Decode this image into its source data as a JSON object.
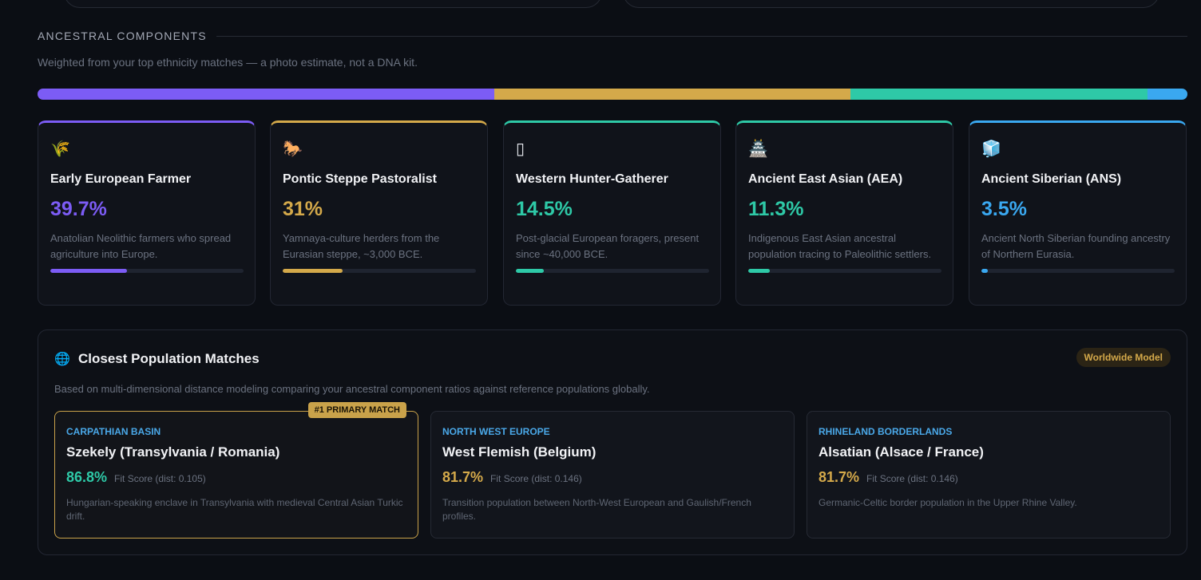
{
  "section": {
    "title": "ANCESTRAL COMPONENTS",
    "subtitle": "Weighted from your top ethnicity matches — a photo estimate, not a DNA kit."
  },
  "components": [
    {
      "icon": "🌾",
      "icon_name": "wheat-icon",
      "name": "Early European Farmer",
      "pct": "39.7%",
      "value": 39.7,
      "desc": "Anatolian Neolithic farmers who spread agriculture into Europe.",
      "color": "#7c5cf5"
    },
    {
      "icon": "🐎",
      "icon_name": "horse-icon",
      "name": "Pontic Steppe Pastoralist",
      "pct": "31%",
      "value": 31,
      "desc": "Yamnaya-culture herders from the Eurasian steppe, ~3,000 BCE.",
      "color": "#d4a94a"
    },
    {
      "icon": "▯",
      "icon_name": "missing-glyph-icon",
      "name": "Western Hunter-Gatherer",
      "pct": "14.5%",
      "value": 14.5,
      "desc": "Post-glacial European foragers, present since ~40,000 BCE.",
      "color": "#2ec9a7"
    },
    {
      "icon": "🏯",
      "icon_name": "castle-icon",
      "name": "Ancient East Asian (AEA)",
      "pct": "11.3%",
      "value": 11.3,
      "desc": "Indigenous East Asian ancestral population tracing to Paleolithic settlers.",
      "color": "#2ec9a7"
    },
    {
      "icon": "🧊",
      "icon_name": "ice-cube-icon",
      "name": "Ancient Siberian (ANS)",
      "pct": "3.5%",
      "value": 3.5,
      "desc": "Ancient North Siberian founding ancestry of Northern Eurasia.",
      "color": "#3aa8f0"
    }
  ],
  "population": {
    "globe_icon": "🌐",
    "title": "Closest Population Matches",
    "badge": "Worldwide Model",
    "subtitle": "Based on multi-dimensional distance modeling comparing your ancestral component ratios against reference populations globally.",
    "matches": [
      {
        "ribbon": "#1 PRIMARY MATCH",
        "region": "CARPATHIAN BASIN",
        "name": "Szekely (Transylvania / Romania)",
        "pct": "86.8%",
        "fit": "Fit Score (dist: 0.105)",
        "desc": "Hungarian-speaking enclave in Transylvania with medieval Central Asian Turkic drift.",
        "color": "#2ec9a7"
      },
      {
        "ribbon": "",
        "region": "NORTH WEST EUROPE",
        "name": "West Flemish (Belgium)",
        "pct": "81.7%",
        "fit": "Fit Score (dist: 0.146)",
        "desc": "Transition population between North-West European and Gaulish/French profiles.",
        "color": "#d4a94a"
      },
      {
        "ribbon": "",
        "region": "RHINELAND BORDERLANDS",
        "name": "Alsatian (Alsace / France)",
        "pct": "81.7%",
        "fit": "Fit Score (dist: 0.146)",
        "desc": "Germanic-Celtic border population in the Upper Rhine Valley.",
        "color": "#d4a94a"
      }
    ]
  }
}
